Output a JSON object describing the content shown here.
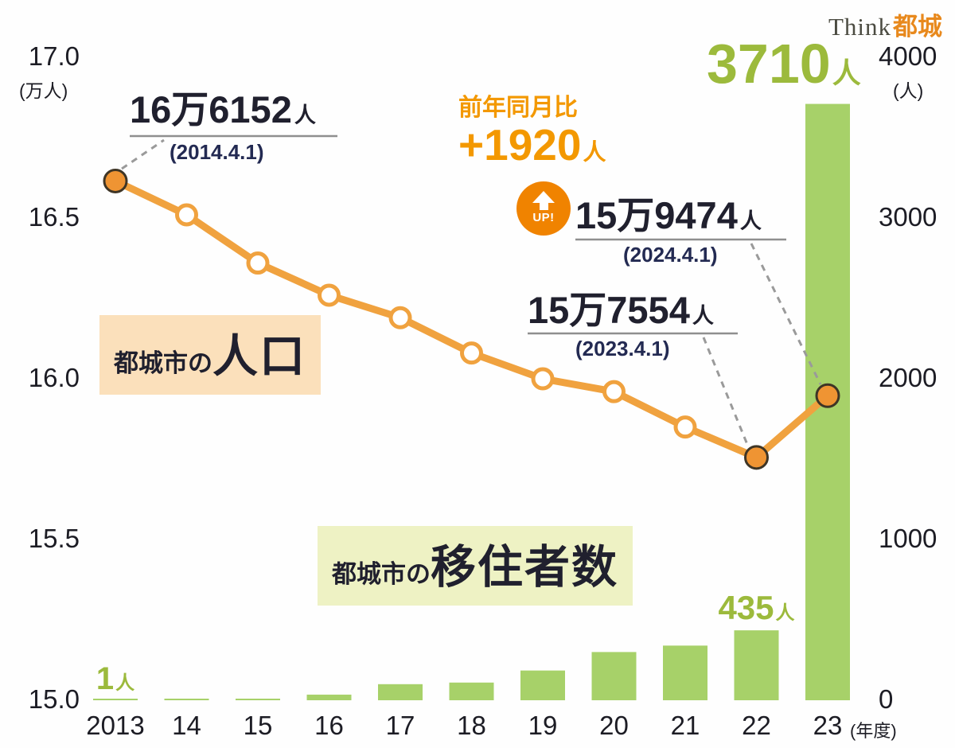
{
  "logo": {
    "think": "Think",
    "brand": "都城"
  },
  "axes": {
    "left": {
      "unit": "(万人)",
      "ticks": [
        "17.0",
        "16.5",
        "16.0",
        "15.5",
        "15.0"
      ]
    },
    "right": {
      "unit": "(人)",
      "ticks": [
        "4000",
        "3000",
        "2000",
        "1000",
        "0"
      ]
    },
    "x": {
      "unit": "(年度)",
      "labels": [
        "2013",
        "14",
        "15",
        "16",
        "17",
        "18",
        "19",
        "20",
        "21",
        "22",
        "23"
      ]
    }
  },
  "chart_data": {
    "type": "line+bar",
    "categories": [
      "2013",
      "14",
      "15",
      "16",
      "17",
      "18",
      "19",
      "20",
      "21",
      "22",
      "23"
    ],
    "series": [
      {
        "name": "都城市の人口",
        "type": "line",
        "axis": "left",
        "unit": "万人",
        "color": "#f0a23f",
        "values": [
          16.6152,
          16.51,
          16.36,
          16.26,
          16.19,
          16.08,
          16.0,
          15.96,
          15.85,
          15.7554,
          15.9474
        ],
        "highlight_points": [
          0,
          9,
          10
        ]
      },
      {
        "name": "都城市の移住者数",
        "type": "bar",
        "axis": "right",
        "unit": "人",
        "color": "#a7d169",
        "values": [
          1,
          10,
          10,
          35,
          100,
          110,
          185,
          300,
          340,
          435,
          3710
        ]
      }
    ],
    "ylim_left": [
      15.0,
      17.0
    ],
    "ylim_right": [
      0,
      4000
    ],
    "grid": false,
    "legend": "inline-badges"
  },
  "badges": {
    "population": {
      "prefix": "都城市の",
      "main": "人口"
    },
    "migrants": {
      "prefix": "都城市の",
      "main": "移住者数"
    }
  },
  "annotations": {
    "pop_2014": {
      "value": "16万6152",
      "unit": "人",
      "date": "(2014.4.1)"
    },
    "yoy": {
      "label": "前年同月比",
      "value": "+1920",
      "unit": "人",
      "badge": "UP!"
    },
    "pop_2024": {
      "value": "15万9474",
      "unit": "人",
      "date": "(2024.4.1)"
    },
    "pop_2023": {
      "value": "15万7554",
      "unit": "人",
      "date": "(2023.4.1)"
    },
    "bar_2023": {
      "value": "3710",
      "unit": "人"
    },
    "bar_2022": {
      "value": "435",
      "unit": "人"
    },
    "bar_2013": {
      "value": "1",
      "unit": "人"
    }
  },
  "colors": {
    "line": "#f0a23f",
    "bar": "#a7d169",
    "green_text": "#9cba3c",
    "orange_text": "#f39800",
    "dark_text": "#20202e",
    "navy_text": "#232a52",
    "dash": "#9a9a9a",
    "underline": "#8f8f8f",
    "up_badge_bg": "#f08300",
    "badge_pop_bg": "#fbe0bb",
    "badge_mig_bg": "#eef2c4",
    "marker_fill": "#ef9433",
    "marker_edge": "#3e3526"
  }
}
